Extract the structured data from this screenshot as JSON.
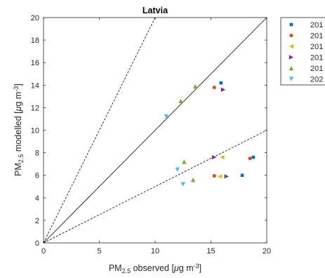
{
  "chart_data": {
    "type": "scatter",
    "title": "Latvia",
    "xlabel": {
      "main": "PM",
      "sub": "2.5",
      "rest": " observed [",
      "mu": "μ",
      "unit": "g m",
      "exp": "-3",
      "close": "]"
    },
    "ylabel": {
      "main": "PM",
      "sub": "2.5",
      "rest": " modelled [",
      "mu": "μ",
      "unit": "g m",
      "exp": "-3",
      "close": "]"
    },
    "xlim": [
      0,
      20
    ],
    "ylim": [
      0,
      20
    ],
    "xticks": [
      "0",
      "5",
      "10",
      "15",
      "20"
    ],
    "yticks": [
      "0",
      "2",
      "4",
      "6",
      "8",
      "10",
      "12",
      "14",
      "16",
      "18",
      "20"
    ],
    "grid": false,
    "legend_position": "outside-top-right",
    "reference_lines": [
      {
        "style": "solid",
        "slope": 1
      },
      {
        "style": "dashed",
        "slope": 2
      },
      {
        "style": "dashed",
        "slope": 0.5
      }
    ],
    "series": [
      {
        "name": "201",
        "marker": "square",
        "color": "#0072BD",
        "points": [
          [
            15.9,
            14.2
          ],
          [
            17.8,
            6.0
          ],
          [
            18.8,
            7.6
          ]
        ]
      },
      {
        "name": "201",
        "marker": "circle",
        "color": "#D95319",
        "points": [
          [
            15.3,
            13.8
          ],
          [
            15.3,
            5.95
          ],
          [
            18.5,
            7.5
          ]
        ]
      },
      {
        "name": "201",
        "marker": "triangle-left",
        "color": "#EDB120",
        "points": [
          [
            16.0,
            7.6
          ],
          [
            15.8,
            5.9
          ]
        ]
      },
      {
        "name": "201",
        "marker": "triangle-right",
        "color": "#7E2F8E",
        "points": [
          [
            16.1,
            13.6
          ],
          [
            15.3,
            7.6
          ]
        ]
      },
      {
        "name": "201",
        "marker": "triangle-up",
        "color": "#77AC30",
        "points": [
          [
            13.6,
            13.9
          ],
          [
            12.3,
            12.6
          ],
          [
            12.6,
            7.2
          ],
          [
            13.4,
            5.6
          ]
        ]
      },
      {
        "name": "202",
        "marker": "triangle-down",
        "color": "#4DBEEE",
        "points": [
          [
            11.0,
            11.2
          ],
          [
            12.0,
            6.5
          ],
          [
            12.5,
            5.2
          ]
        ]
      },
      {
        "name": "",
        "marker": "triangle-right",
        "color": "#555555",
        "points": [
          [
            16.4,
            5.9
          ]
        ]
      }
    ]
  }
}
